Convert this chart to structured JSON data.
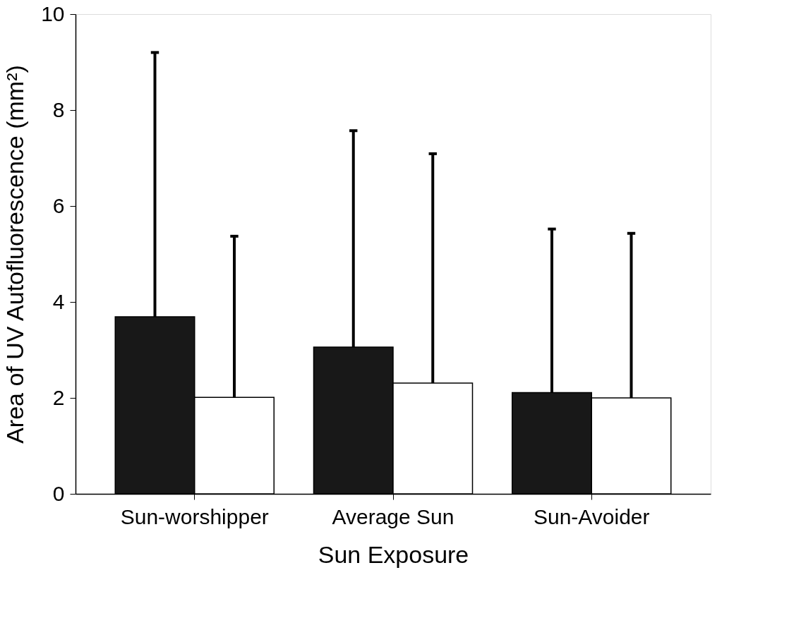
{
  "chart_data": {
    "type": "bar",
    "xlabel": "Sun Exposure",
    "ylabel": "Area of UV Autofluorescence (mm²)",
    "categories": [
      "Sun-worshipper",
      "Average Sun",
      "Sun-Avoider"
    ],
    "series": [
      {
        "color": "#181818",
        "values": [
          3.69,
          3.06,
          2.11
        ],
        "errors": [
          [
            3.69,
            9.2
          ],
          [
            3.06,
            7.57
          ],
          [
            2.11,
            5.52
          ]
        ]
      },
      {
        "color": "#ffffff",
        "values": [
          2.01,
          2.31,
          2.0
        ],
        "errors": [
          [
            2.01,
            5.37
          ],
          [
            2.31,
            7.09
          ],
          [
            2.0,
            5.43
          ]
        ]
      }
    ],
    "ylim": [
      0,
      10
    ],
    "yticks": [
      0,
      2,
      4,
      6,
      8,
      10
    ],
    "grid": false,
    "legend": false
  }
}
